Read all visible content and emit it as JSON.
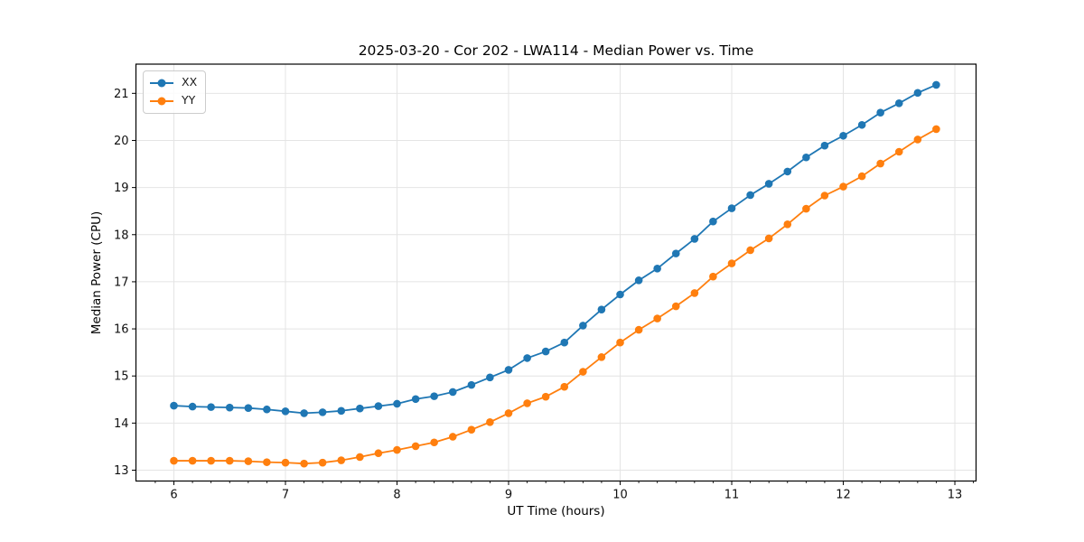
{
  "chart_data": {
    "type": "line",
    "title": "2025-03-20 - Cor 202 - LWA114 - Median Power vs. Time",
    "xlabel": "UT Time (hours)",
    "ylabel": "Median Power (CPU)",
    "xlim": [
      5.66,
      13.19
    ],
    "ylim": [
      12.77,
      21.62
    ],
    "xticks": [
      6,
      7,
      8,
      9,
      10,
      11,
      12,
      13
    ],
    "yticks": [
      13,
      14,
      15,
      16,
      17,
      18,
      19,
      20,
      21
    ],
    "x_minor_step": 0.1667,
    "grid": true,
    "grid_color": "#e4e4e4",
    "marker": "o",
    "legend_position": "upper left",
    "x": [
      6.0,
      6.167,
      6.333,
      6.5,
      6.667,
      6.833,
      7.0,
      7.167,
      7.333,
      7.5,
      7.667,
      7.833,
      8.0,
      8.167,
      8.333,
      8.5,
      8.667,
      8.833,
      9.0,
      9.167,
      9.333,
      9.5,
      9.667,
      9.833,
      10.0,
      10.167,
      10.333,
      10.5,
      10.667,
      10.833,
      11.0,
      11.167,
      11.333,
      11.5,
      11.667,
      11.833,
      12.0,
      12.167,
      12.333,
      12.5,
      12.667,
      12.833
    ],
    "series": [
      {
        "name": "XX",
        "color": "#1f77b4",
        "values": [
          14.37,
          14.35,
          14.34,
          14.33,
          14.32,
          14.29,
          14.25,
          14.21,
          14.23,
          14.26,
          14.31,
          14.36,
          14.41,
          14.51,
          14.57,
          14.66,
          14.81,
          14.97,
          15.13,
          15.38,
          15.52,
          15.71,
          16.07,
          16.41,
          16.73,
          17.03,
          17.28,
          17.6,
          17.91,
          18.28,
          18.56,
          18.84,
          19.08,
          19.34,
          19.64,
          19.89,
          20.1,
          20.33,
          20.59,
          20.79,
          21.01,
          21.18
        ]
      },
      {
        "name": "YY",
        "color": "#ff7f0e",
        "values": [
          13.2,
          13.2,
          13.2,
          13.2,
          13.19,
          13.17,
          13.16,
          13.14,
          13.16,
          13.21,
          13.28,
          13.36,
          13.43,
          13.51,
          13.59,
          13.71,
          13.86,
          14.02,
          14.21,
          14.42,
          14.56,
          14.77,
          15.09,
          15.4,
          15.71,
          15.98,
          16.22,
          16.48,
          16.76,
          17.11,
          17.39,
          17.67,
          17.92,
          18.22,
          18.55,
          18.83,
          19.02,
          19.24,
          19.51,
          19.76,
          20.02,
          20.24
        ]
      }
    ]
  }
}
